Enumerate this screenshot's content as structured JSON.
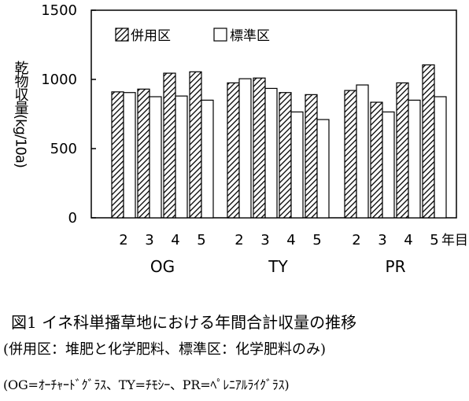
{
  "chart_data": {
    "type": "bar",
    "ylabel": "乾物収量(kg/10a)",
    "ylim": [
      0,
      1500
    ],
    "yticks": [
      0,
      500,
      1000,
      1500
    ],
    "year_unit": "年目",
    "grid": false,
    "legend_position": "top-left",
    "series": [
      {
        "name": "併用区",
        "pattern": "hatched"
      },
      {
        "name": "標準区",
        "pattern": "white"
      }
    ],
    "groups": [
      {
        "name": "OG",
        "years": [
          "2",
          "3",
          "4",
          "5"
        ],
        "values": {
          "併用区": [
            910,
            930,
            1045,
            1055
          ],
          "標準区": [
            905,
            875,
            880,
            850
          ]
        }
      },
      {
        "name": "TY",
        "years": [
          "2",
          "3",
          "4",
          "5"
        ],
        "values": {
          "併用区": [
            975,
            1010,
            905,
            890
          ],
          "標準区": [
            1005,
            935,
            765,
            710
          ]
        }
      },
      {
        "name": "PR",
        "years": [
          "2",
          "3",
          "4",
          "5"
        ],
        "values": {
          "併用区": [
            920,
            835,
            975,
            1105
          ],
          "標準区": [
            960,
            765,
            850,
            875
          ]
        }
      }
    ]
  },
  "caption": {
    "title": "図1 イネ科単播草地における年間合計収量の推移",
    "note1": "(併用区：堆肥と化学肥料、標準区：化学肥料のみ)",
    "note2": "(OG=ｵｰﾁｬｰﾄﾞｸﾞﾗｽ、TY=ﾁﾓｼｰ、PR=ﾍﾟﾚﾆｱﾙﾗｲｸﾞﾗｽ)"
  },
  "colors": {
    "axis": "#000000",
    "bar_fill_standard": "#ffffff",
    "hatch": "#000000"
  }
}
